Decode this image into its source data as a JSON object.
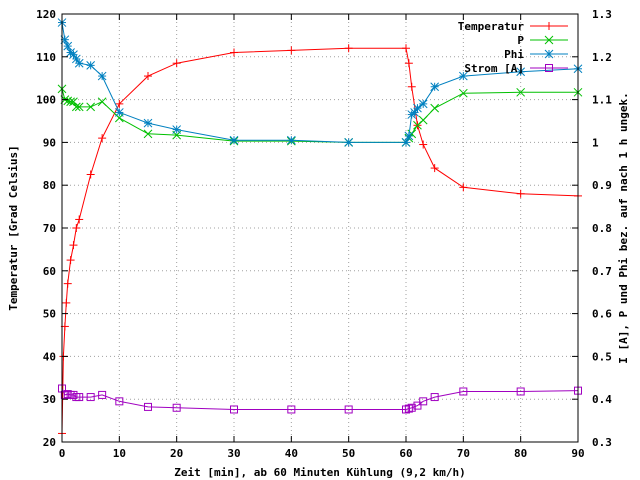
{
  "chart_data": {
    "type": "line",
    "title": "",
    "xlabel": "Zeit [min], ab 60 Minuten Kühlung (9,2 km/h)",
    "ylabel": "Temperatur [Grad Celsius]",
    "y2label": "I [A], P und Phi bez. auf nach 1 h ungek.",
    "xlim": [
      0,
      90
    ],
    "ylim": [
      20,
      120
    ],
    "y2lim": [
      0.3,
      1.3
    ],
    "x_ticks": [
      0,
      10,
      20,
      30,
      40,
      50,
      60,
      70,
      80,
      90
    ],
    "y_ticks": [
      20,
      30,
      40,
      50,
      60,
      70,
      80,
      90,
      100,
      110,
      120
    ],
    "y2_ticks": [
      "0.3",
      "0.4",
      "0.5",
      "0.6",
      "0.7",
      "0.8",
      "0.9",
      "1",
      "1.1",
      "1.2",
      "1.3"
    ],
    "grid": true,
    "legend_position": "top-right",
    "series": [
      {
        "name": "Temperatur",
        "axis": "left",
        "color": "#ff0000",
        "marker": "plus",
        "x": [
          0,
          0.25,
          0.5,
          0.75,
          1,
          1.5,
          2,
          2.5,
          3,
          5,
          7,
          10,
          15,
          20,
          30,
          40,
          50,
          60,
          60.5,
          61,
          62,
          63,
          65,
          70,
          80,
          90
        ],
        "y": [
          22,
          40,
          47,
          52.5,
          57,
          62.5,
          66,
          70,
          72,
          82.5,
          91,
          99,
          105.5,
          108.5,
          111,
          111.5,
          112,
          112,
          108.5,
          103,
          94,
          89.5,
          84,
          79.5,
          78,
          77.5
        ]
      },
      {
        "name": "P",
        "axis": "right",
        "color": "#00c000",
        "marker": "x",
        "x": [
          0,
          0.5,
          1,
          1.5,
          2,
          2.5,
          3,
          5,
          7,
          10,
          15,
          20,
          30,
          40,
          50,
          60,
          60.5,
          61,
          62,
          63,
          65,
          70,
          80,
          90
        ],
        "y": [
          1.125,
          1.1,
          1.097,
          1.095,
          1.095,
          1.083,
          1.083,
          1.083,
          1.095,
          1.057,
          1.02,
          1.017,
          1.003,
          1.003,
          1.0,
          1.0,
          1.01,
          1.02,
          1.04,
          1.052,
          1.08,
          1.115,
          1.117,
          1.117
        ]
      },
      {
        "name": "Phi",
        "axis": "right",
        "color": "#0080c0",
        "marker": "star",
        "x": [
          0,
          0.5,
          1,
          1.5,
          2,
          2.5,
          3,
          5,
          7,
          10,
          15,
          20,
          30,
          40,
          50,
          60,
          60.5,
          61,
          61.5,
          62,
          63,
          65,
          70,
          80,
          90
        ],
        "y": [
          1.28,
          1.24,
          1.225,
          1.21,
          1.205,
          1.195,
          1.185,
          1.18,
          1.155,
          1.07,
          1.045,
          1.03,
          1.005,
          1.005,
          1.0,
          1.0,
          1.015,
          1.065,
          1.07,
          1.08,
          1.09,
          1.13,
          1.155,
          1.165,
          1.172
        ]
      },
      {
        "name": "Strom [A]",
        "axis": "right",
        "color": "#a000c0",
        "marker": "square",
        "x": [
          0,
          0.5,
          1,
          1.5,
          2,
          2.5,
          3,
          5,
          7,
          10,
          15,
          20,
          30,
          40,
          50,
          60,
          60.5,
          61,
          62,
          63,
          65,
          70,
          80,
          90
        ],
        "y": [
          0.425,
          0.41,
          0.412,
          0.41,
          0.41,
          0.405,
          0.405,
          0.405,
          0.41,
          0.395,
          0.382,
          0.38,
          0.376,
          0.376,
          0.376,
          0.376,
          0.378,
          0.38,
          0.385,
          0.395,
          0.405,
          0.418,
          0.418,
          0.42
        ]
      }
    ]
  }
}
